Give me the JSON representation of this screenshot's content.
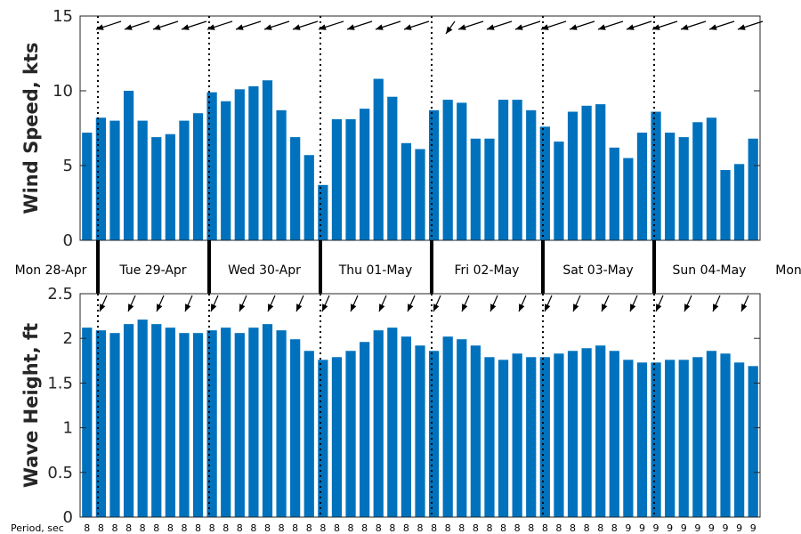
{
  "chart_data": [
    {
      "type": "bar",
      "ylabel": "Wind Speed, kts",
      "ylim": [
        0,
        15
      ],
      "yticks": [
        0,
        5,
        10,
        15
      ],
      "bar_color": "#0072BD",
      "values": [
        7.2,
        8.2,
        8.0,
        10.0,
        8.0,
        6.9,
        7.1,
        8.0,
        8.5,
        9.9,
        9.3,
        10.1,
        10.3,
        10.7,
        8.7,
        6.9,
        5.7,
        3.7,
        8.1,
        8.1,
        8.8,
        10.8,
        9.6,
        6.5,
        6.1,
        8.7,
        9.4,
        9.2,
        6.8,
        6.8,
        9.4,
        9.4,
        8.7,
        7.6,
        6.6,
        8.6,
        9.0,
        9.1,
        6.2,
        5.5,
        7.2,
        8.6,
        7.2,
        6.9,
        7.9,
        8.2,
        4.7,
        5.1,
        6.8
      ],
      "direction_arrows": "pointing west-southwest (wind from the east-northeast)"
    },
    {
      "type": "bar",
      "ylabel": "Wave Height, ft",
      "ylim": [
        0,
        2.5
      ],
      "yticks": [
        0,
        0.5,
        1,
        1.5,
        2,
        2.5
      ],
      "bar_color": "#0072BD",
      "values": [
        2.12,
        2.09,
        2.06,
        2.16,
        2.21,
        2.16,
        2.12,
        2.06,
        2.06,
        2.09,
        2.12,
        2.06,
        2.12,
        2.16,
        2.09,
        1.99,
        1.86,
        1.76,
        1.79,
        1.86,
        1.96,
        2.09,
        2.12,
        2.02,
        1.92,
        1.86,
        2.02,
        1.99,
        1.92,
        1.79,
        1.76,
        1.83,
        1.79,
        1.79,
        1.83,
        1.86,
        1.89,
        1.92,
        1.86,
        1.76,
        1.73,
        1.73,
        1.76,
        1.76,
        1.79,
        1.86,
        1.83,
        1.73,
        1.69
      ],
      "direction_arrows": "pointing south-southwest (swell from the north-northeast)"
    }
  ],
  "days": [
    "Mon 28-Apr",
    "Tue 29-Apr",
    "Wed 30-Apr",
    "Thu 01-May",
    "Fri 02-May",
    "Sat 03-May",
    "Sun 04-May",
    "Mon"
  ],
  "period_title": "Period, sec",
  "periods": [
    8,
    8,
    8,
    8,
    8,
    8,
    8,
    8,
    8,
    8,
    8,
    8,
    8,
    8,
    8,
    8,
    8,
    8,
    8,
    8,
    8,
    8,
    8,
    8,
    8,
    8,
    8,
    8,
    8,
    8,
    8,
    8,
    8,
    8,
    8,
    8,
    8,
    8,
    8,
    9,
    9,
    9,
    9,
    9,
    9,
    9,
    9,
    9,
    9
  ]
}
